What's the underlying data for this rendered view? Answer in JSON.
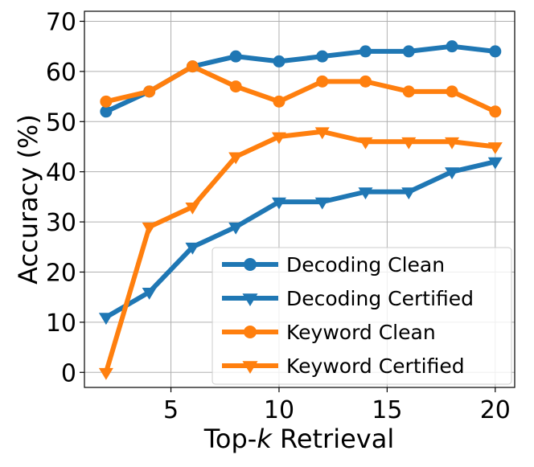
{
  "chart_data": {
    "type": "line",
    "xlabel_prefix": "Top-",
    "xlabel_var": "k",
    "xlabel_suffix": " Retrieval",
    "ylabel": "Accuracy (%)",
    "xlim": [
      1.0,
      20.9
    ],
    "ylim": [
      -3,
      72
    ],
    "xticks": [
      5,
      10,
      15,
      20
    ],
    "yticks": [
      0,
      10,
      20,
      30,
      40,
      50,
      60,
      70
    ],
    "grid": true,
    "legend_position": "lower-right",
    "x": [
      2,
      4,
      6,
      8,
      10,
      12,
      14,
      16,
      18,
      20
    ],
    "series": [
      {
        "name": "Decoding Clean",
        "color": "#1f77b4",
        "marker": "circle",
        "values": [
          52,
          56,
          61,
          63,
          62,
          63,
          64,
          64,
          65,
          64
        ]
      },
      {
        "name": "Decoding Certified",
        "color": "#1f77b4",
        "marker": "triangle-down",
        "values": [
          11,
          16,
          25,
          29,
          34,
          34,
          36,
          36,
          40,
          42
        ]
      },
      {
        "name": "Keyword Clean",
        "color": "#ff7f0e",
        "marker": "circle",
        "values": [
          54,
          56,
          61,
          57,
          54,
          58,
          58,
          56,
          56,
          52
        ]
      },
      {
        "name": "Keyword Certified",
        "color": "#ff7f0e",
        "marker": "triangle-down",
        "values": [
          0,
          29,
          33,
          43,
          47,
          48,
          46,
          46,
          46,
          45
        ]
      }
    ]
  }
}
